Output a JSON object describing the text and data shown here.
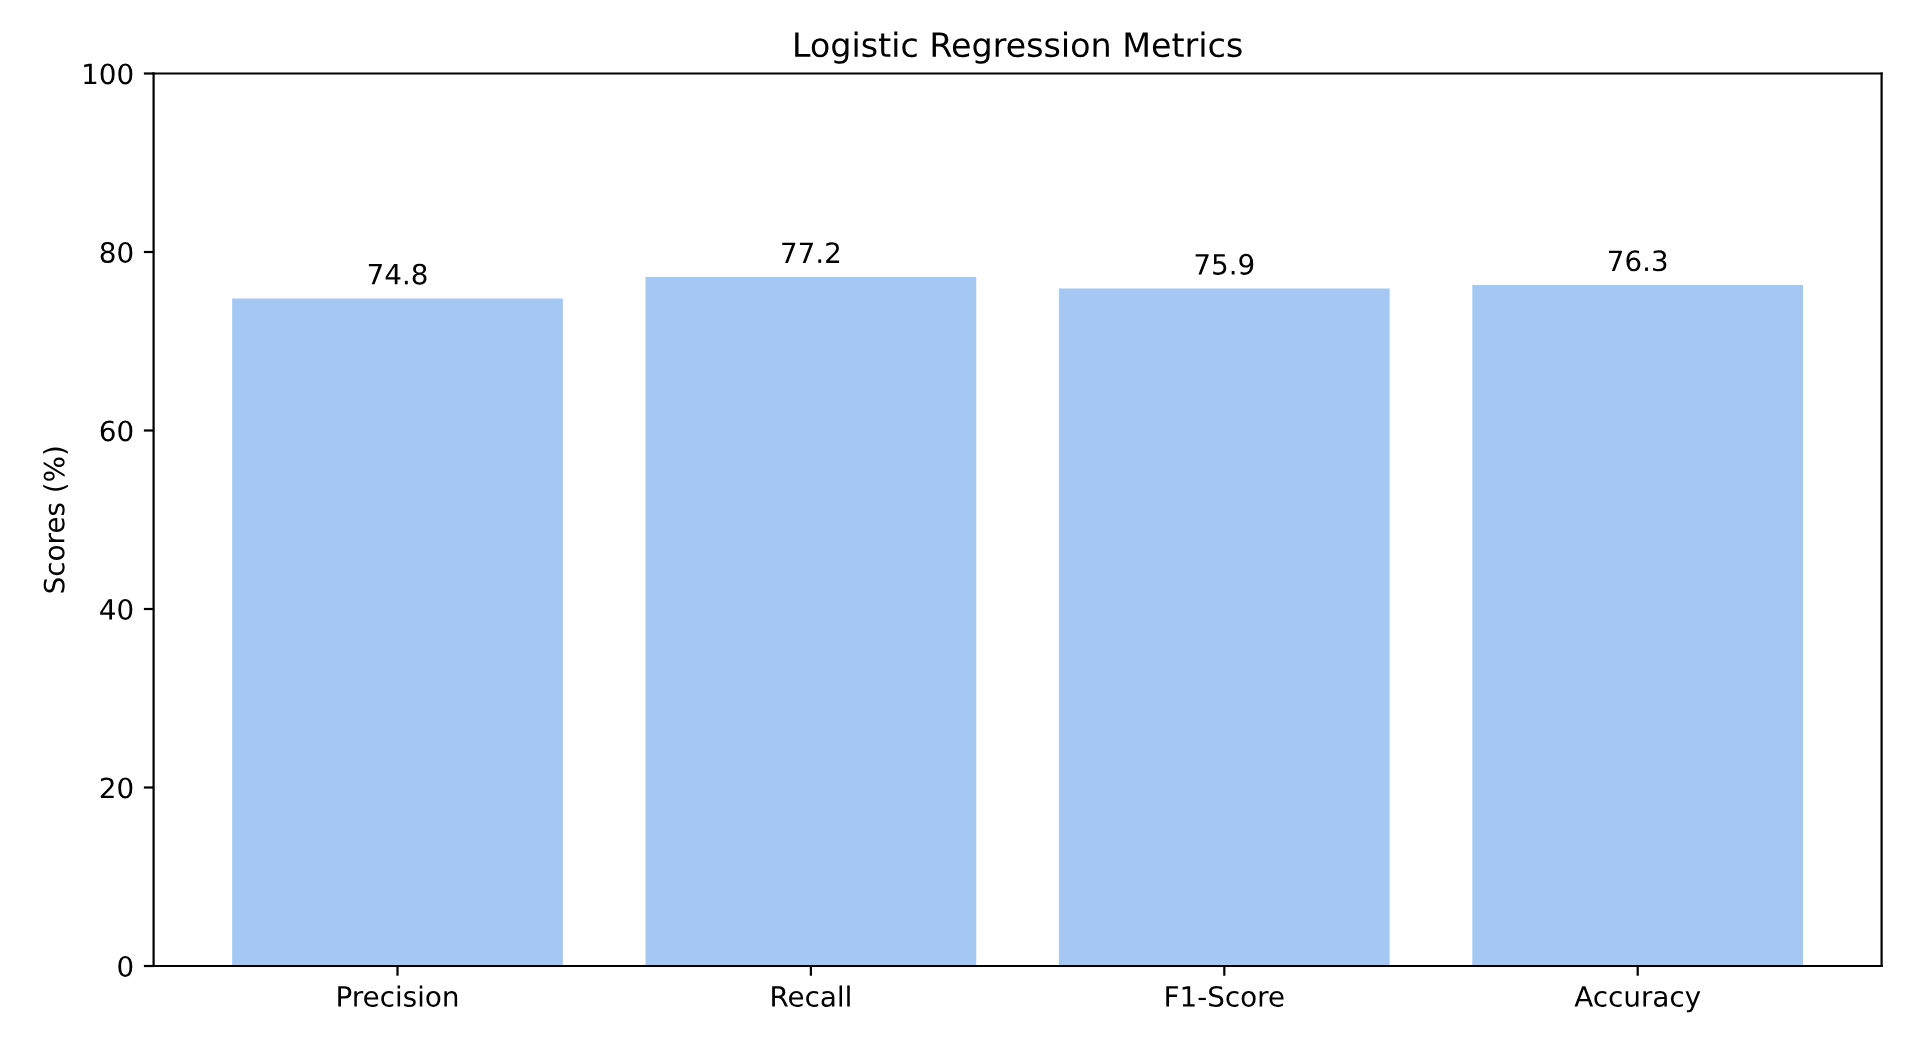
{
  "chart_data": {
    "type": "bar",
    "title": "Logistic Regression Metrics",
    "ylabel": "Scores (%)",
    "categories": [
      "Precision",
      "Recall",
      "F1-Score",
      "Accuracy"
    ],
    "values": [
      74.8,
      77.2,
      75.9,
      76.3
    ],
    "color": "#a4c8f2",
    "ylim": [
      0,
      100
    ],
    "yticks": [
      0,
      20,
      40,
      60,
      80,
      100
    ],
    "data_labels": true,
    "grid": false
  }
}
